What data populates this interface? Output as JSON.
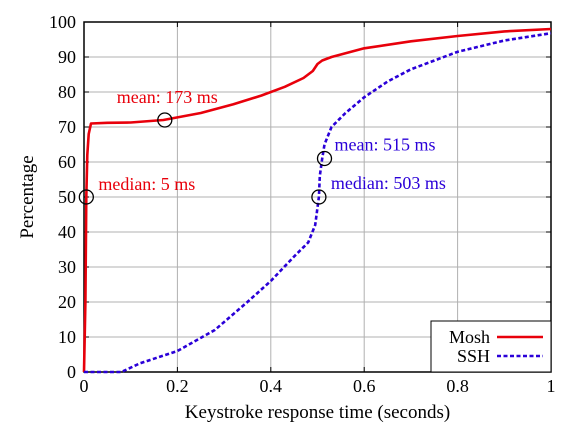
{
  "chart_data": {
    "type": "line",
    "xlabel": "Keystroke response time (seconds)",
    "ylabel": "Percentage",
    "xlim": [
      0,
      1
    ],
    "ylim": [
      0,
      100
    ],
    "x_ticks": [
      "0",
      "0.2",
      "0.4",
      "0.6",
      "0.8",
      "1"
    ],
    "y_ticks": [
      "0",
      "10",
      "20",
      "30",
      "40",
      "50",
      "60",
      "70",
      "80",
      "90",
      "100"
    ],
    "grid": true,
    "legend_position": "bottom-right",
    "series": [
      {
        "name": "Mosh",
        "color": "#e8000b",
        "style": "solid",
        "points": [
          [
            0,
            0
          ],
          [
            0.003,
            20
          ],
          [
            0.005,
            50
          ],
          [
            0.007,
            62
          ],
          [
            0.01,
            68
          ],
          [
            0.015,
            71
          ],
          [
            0.05,
            71.2
          ],
          [
            0.1,
            71.3
          ],
          [
            0.17,
            72
          ],
          [
            0.25,
            74
          ],
          [
            0.32,
            76.5
          ],
          [
            0.38,
            79
          ],
          [
            0.43,
            81.5
          ],
          [
            0.47,
            84
          ],
          [
            0.49,
            86
          ],
          [
            0.5,
            88
          ],
          [
            0.51,
            89
          ],
          [
            0.53,
            90
          ],
          [
            0.6,
            92.5
          ],
          [
            0.7,
            94.5
          ],
          [
            0.8,
            96
          ],
          [
            0.9,
            97.3
          ],
          [
            1.0,
            98
          ]
        ]
      },
      {
        "name": "SSH",
        "color": "#2a00d8",
        "style": "dashed",
        "points": [
          [
            0,
            0
          ],
          [
            0.08,
            0
          ],
          [
            0.12,
            2.5
          ],
          [
            0.2,
            6
          ],
          [
            0.28,
            12
          ],
          [
            0.35,
            20
          ],
          [
            0.4,
            26
          ],
          [
            0.45,
            33
          ],
          [
            0.48,
            37
          ],
          [
            0.495,
            42
          ],
          [
            0.5,
            47
          ],
          [
            0.503,
            50
          ],
          [
            0.505,
            56
          ],
          [
            0.51,
            61
          ],
          [
            0.515,
            65
          ],
          [
            0.53,
            70
          ],
          [
            0.56,
            74
          ],
          [
            0.6,
            78.5
          ],
          [
            0.65,
            83
          ],
          [
            0.7,
            86.5
          ],
          [
            0.8,
            91.5
          ],
          [
            0.9,
            94.7
          ],
          [
            1.0,
            96.8
          ]
        ]
      }
    ],
    "annotations": [
      {
        "text": "mean: 173 ms",
        "series": "Mosh",
        "point": [
          0.173,
          72
        ],
        "color": "#e8000b"
      },
      {
        "text": "median: 5 ms",
        "series": "Mosh",
        "point": [
          0.005,
          50
        ],
        "color": "#e8000b"
      },
      {
        "text": "mean: 515 ms",
        "series": "SSH",
        "point": [
          0.515,
          61
        ],
        "color": "#2a00d8"
      },
      {
        "text": "median: 503 ms",
        "series": "SSH",
        "point": [
          0.503,
          50
        ],
        "color": "#2a00d8"
      }
    ]
  }
}
